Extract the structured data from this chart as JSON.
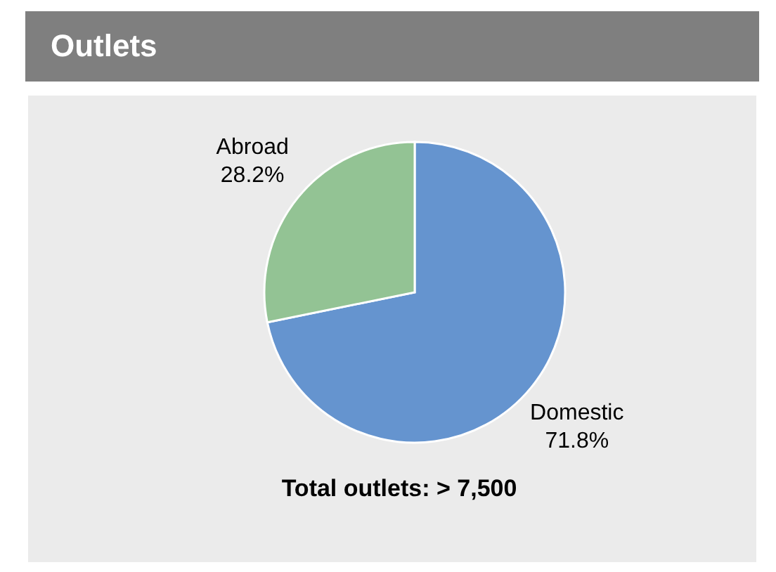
{
  "chart_data": {
    "type": "pie",
    "title": "Outlets",
    "categories": [
      "Domestic",
      "Abroad"
    ],
    "values": [
      71.8,
      28.2
    ],
    "value_labels": [
      "71.8%",
      "28.2%"
    ],
    "colors": [
      "#6594cf",
      "#93c394"
    ],
    "annotations": [
      "Total outlets: > 7,500"
    ],
    "legend": false
  }
}
